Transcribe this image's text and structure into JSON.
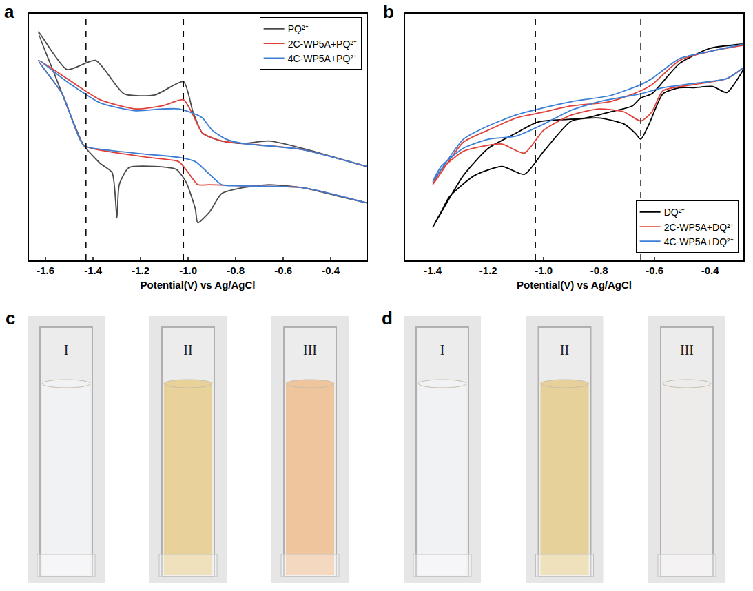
{
  "chart_data": [
    {
      "type": "line",
      "panel_label": "a",
      "x_label": "Potential(V) vs Ag/AgCl",
      "xlim": [
        -1.67,
        -0.25
      ],
      "xticks": [
        -1.6,
        -1.4,
        -1.2,
        {
          "value": -1.0,
          "label": "-1.0"
        },
        -0.8,
        -0.6,
        -0.4
      ],
      "ylim": [
        0,
        407
      ],
      "yticks": [],
      "tick_labels": "x",
      "grid": false,
      "legend": "top right",
      "vlines": [
        -1.43,
        -1.02
      ],
      "series": [
        {
          "name": "PQ²⁺",
          "color": "#4a4a4a",
          "x": [
            -0.25,
            -0.52,
            -0.66,
            -0.77,
            -0.86,
            -0.94,
            -0.98,
            -1.02,
            -1.14,
            -1.27,
            -1.39,
            -1.51,
            -1.63,
            -1.56,
            -1.48,
            -1.44,
            -1.37,
            -1.32,
            -1.3,
            -1.29,
            -1.25,
            -1.14,
            -1.05,
            -1.01,
            -0.97,
            -0.96,
            -0.91,
            -0.86,
            -0.77,
            -0.66,
            -0.52,
            -0.38,
            -0.25
          ],
          "values": [
            155,
            185,
            197,
            193,
            197,
            210,
            245,
            295,
            273,
            275,
            330,
            315,
            377,
            305,
            225,
            190,
            160,
            145,
            70,
            125,
            153,
            155,
            150,
            130,
            85,
            62,
            80,
            110,
            120,
            125,
            120,
            107,
            95
          ]
        },
        {
          "name": "2C-WP5A+PQ²⁺",
          "color": "#e0403a",
          "x": [
            -0.25,
            -0.52,
            -0.77,
            -0.86,
            -0.94,
            -0.98,
            -1.02,
            -1.11,
            -1.22,
            -1.37,
            -1.51,
            -1.63,
            -1.53,
            -1.44,
            -1.34,
            -1.17,
            -1.04,
            -1.0,
            -0.96,
            -0.91,
            -0.77,
            -0.52,
            -0.25
          ],
          "values": [
            155,
            183,
            193,
            197,
            210,
            240,
            265,
            255,
            250,
            265,
            300,
            330,
            275,
            190,
            180,
            170,
            163,
            145,
            125,
            125,
            123,
            120,
            95
          ]
        },
        {
          "name": "4C-WP5A+PQ²⁺",
          "color": "#3a7fd5",
          "x": [
            -0.25,
            -0.52,
            -0.77,
            -0.84,
            -0.9,
            -0.94,
            -0.98,
            -1.04,
            -1.11,
            -1.22,
            -1.37,
            -1.51,
            -1.63,
            -1.53,
            -1.44,
            -1.34,
            -1.17,
            -1.04,
            -0.97,
            -0.91,
            -0.86,
            -0.77,
            -0.52,
            -0.25
          ],
          "values": [
            155,
            183,
            193,
            200,
            215,
            235,
            243,
            250,
            250,
            247,
            260,
            295,
            330,
            275,
            190,
            182,
            175,
            170,
            163,
            142,
            125,
            123,
            120,
            95
          ]
        }
      ]
    },
    {
      "type": "line",
      "panel_label": "b",
      "x_label": "Potential(V) vs Ag/AgCl",
      "xlim": [
        -1.5,
        -0.28
      ],
      "xticks": [
        -1.4,
        -1.2,
        {
          "value": -1.0,
          "label": "-1.0"
        },
        -0.8,
        -0.6,
        -0.4
      ],
      "ylim": [
        0,
        407
      ],
      "yticks": [],
      "tick_labels": "x",
      "grid": false,
      "legend": "bottom right",
      "vlines": [
        -1.03,
        -0.65
      ],
      "series": [
        {
          "name": "DQ²⁺",
          "color": "#000000",
          "x": [
            -0.28,
            -0.4,
            -0.51,
            -0.61,
            -0.65,
            -0.68,
            -0.76,
            -0.85,
            -1.0,
            -1.03,
            -1.1,
            -1.2,
            -1.29,
            -1.4,
            -1.37,
            -1.34,
            -1.25,
            -1.15,
            -1.07,
            -1.0,
            -0.9,
            -0.8,
            -0.71,
            -0.67,
            -0.65,
            -0.62,
            -0.57,
            -0.51,
            -0.46,
            -0.39,
            -0.34,
            -0.28
          ],
          "values": [
            357,
            350,
            325,
            275,
            268,
            255,
            245,
            235,
            230,
            227,
            210,
            185,
            140,
            55,
            80,
            105,
            140,
            155,
            142,
            180,
            230,
            235,
            225,
            210,
            200,
            225,
            275,
            285,
            285,
            287,
            277,
            315
          ]
        },
        {
          "name": "2C-WP5A+DQ²⁺",
          "color": "#e0403a",
          "x": [
            -0.28,
            -0.4,
            -0.51,
            -0.61,
            -0.65,
            -0.76,
            -0.9,
            -1.0,
            -1.1,
            -1.2,
            -1.29,
            -1.4,
            -1.37,
            -1.29,
            -1.2,
            -1.15,
            -1.07,
            -1.0,
            -0.9,
            -0.8,
            -0.71,
            -0.65,
            -0.61,
            -0.57,
            -0.46,
            -0.34,
            -0.28
          ],
          "values": [
            355,
            345,
            330,
            290,
            280,
            262,
            255,
            245,
            235,
            215,
            195,
            125,
            150,
            180,
            190,
            192,
            177,
            215,
            240,
            250,
            245,
            230,
            245,
            280,
            290,
            300,
            318
          ]
        },
        {
          "name": "4C-WP5A+DQ²⁺",
          "color": "#3a7fd5",
          "x": [
            -0.28,
            -0.4,
            -0.51,
            -0.61,
            -0.65,
            -0.76,
            -0.9,
            -1.0,
            -1.1,
            -1.2,
            -1.29,
            -1.4,
            -1.37,
            -1.29,
            -1.2,
            -1.1,
            -1.0,
            -0.9,
            -0.8,
            -0.65,
            -0.57,
            -0.46,
            -0.34,
            -0.28
          ],
          "values": [
            357,
            345,
            333,
            300,
            290,
            272,
            262,
            252,
            240,
            222,
            200,
            130,
            155,
            185,
            200,
            205,
            225,
            248,
            262,
            275,
            285,
            292,
            300,
            318
          ]
        }
      ]
    }
  ],
  "photos": [
    {
      "panel_label": "c",
      "cuvettes": [
        {
          "label": "I",
          "color": "#eceef0"
        },
        {
          "label": "II",
          "color": "#e2c278"
        },
        {
          "label": "III",
          "color": "#eab27e"
        }
      ]
    },
    {
      "panel_label": "d",
      "cuvettes": [
        {
          "label": "I",
          "color": "#eceef0"
        },
        {
          "label": "II",
          "color": "#dcc277"
        },
        {
          "label": "III",
          "color": "#e8e6e4"
        }
      ]
    }
  ]
}
